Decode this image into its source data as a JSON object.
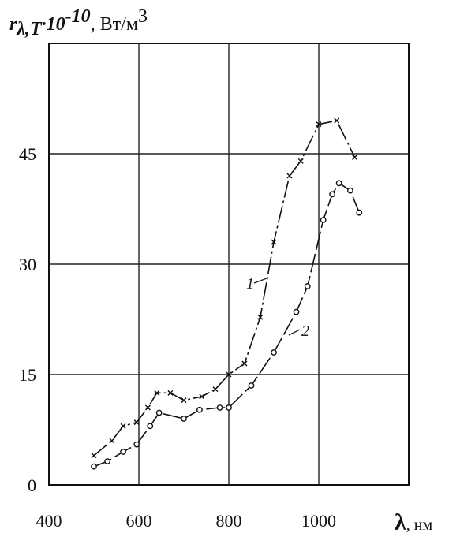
{
  "chart_data": {
    "type": "line",
    "ylabel_symbol": "r",
    "ylabel_subscript": "λ,T",
    "ylabel_factor": "·10",
    "ylabel_exponent": "-10",
    "ylabel_unit": ", Вт/м",
    "ylabel_unit_exp": "3",
    "xlabel_symbol": "λ",
    "xlabel_unit": ", нм",
    "x_ticks": [
      "400",
      "600",
      "800",
      "1000"
    ],
    "y_ticks": [
      "0",
      "15",
      "30",
      "45"
    ],
    "xlim": [
      400,
      1200
    ],
    "ylim": [
      0,
      60
    ],
    "grid": true,
    "series": [
      {
        "name": "1",
        "marker": "x",
        "x": [
          500,
          540,
          565,
          595,
          620,
          640,
          670,
          700,
          740,
          770,
          800,
          835,
          870,
          900,
          935,
          960,
          1000,
          1040,
          1080
        ],
        "y": [
          4,
          6,
          8,
          8.5,
          10.5,
          12.5,
          12.5,
          11.5,
          12,
          13,
          15,
          16.5,
          22.8,
          33,
          42,
          44,
          49,
          49.5,
          44.5
        ]
      },
      {
        "name": "2",
        "marker": "o",
        "x": [
          500,
          530,
          565,
          595,
          625,
          645,
          700,
          735,
          780,
          800,
          850,
          900,
          950,
          975,
          1010,
          1030,
          1045,
          1070,
          1090
        ],
        "y": [
          2.5,
          3.2,
          4.5,
          5.5,
          8,
          9.8,
          9,
          10.2,
          10.5,
          10.5,
          13.5,
          18,
          23.5,
          27,
          36,
          39.5,
          41,
          40,
          37
        ]
      }
    ],
    "curve_labels": [
      "1",
      "2"
    ]
  }
}
